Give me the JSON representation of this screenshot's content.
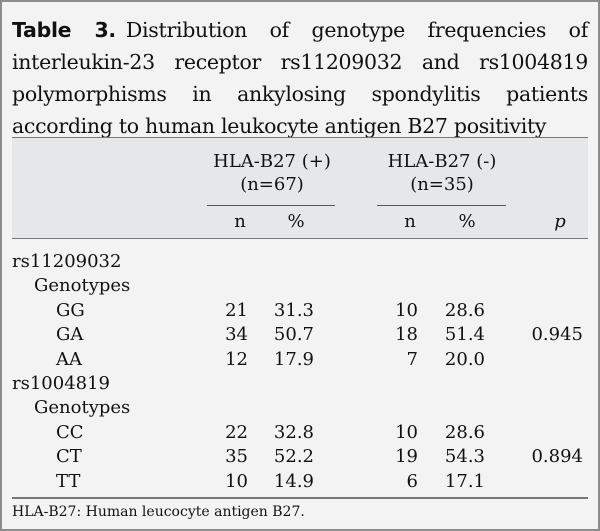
{
  "title": {
    "label": "Table 3.",
    "text": "Distribution of genotype frequencies of interleukin-23 receptor rs11209032 and rs1004819 polymorphisms in ankylosing spondylitis patients according to human leukocyte antigen B27 positivity"
  },
  "header": {
    "group1": "HLA-B27 (+)",
    "group1_n": "(n=67)",
    "group2": "HLA-B27 (-)",
    "group2_n": "(n=35)",
    "n": "n",
    "pct": "%",
    "p": "p"
  },
  "rows": [
    {
      "label": "rs11209032",
      "n1": "",
      "p1": "",
      "n2": "",
      "p2": "",
      "p": ""
    },
    {
      "label": "Genotypes",
      "n1": "",
      "p1": "",
      "n2": "",
      "p2": "",
      "p": ""
    },
    {
      "label": "GG",
      "n1": "21",
      "p1": "31.3",
      "n2": "10",
      "p2": "28.6",
      "p": ""
    },
    {
      "label": "GA",
      "n1": "34",
      "p1": "50.7",
      "n2": "18",
      "p2": "51.4",
      "p": "0.945"
    },
    {
      "label": "AA",
      "n1": "12",
      "p1": "17.9",
      "n2": "7",
      "p2": "20.0",
      "p": ""
    },
    {
      "label": "rs1004819",
      "n1": "",
      "p1": "",
      "n2": "",
      "p2": "",
      "p": ""
    },
    {
      "label": "Genotypes",
      "n1": "",
      "p1": "",
      "n2": "",
      "p2": "",
      "p": ""
    },
    {
      "label": "CC",
      "n1": "22",
      "p1": "32.8",
      "n2": "10",
      "p2": "28.6",
      "p": ""
    },
    {
      "label": "CT",
      "n1": "35",
      "p1": "52.2",
      "n2": "19",
      "p2": "54.3",
      "p": "0.894"
    },
    {
      "label": "TT",
      "n1": "10",
      "p1": "14.9",
      "n2": "6",
      "p2": "17.1",
      "p": ""
    }
  ],
  "footnote": "HLA-B27: Human leucocyte antigen B27."
}
